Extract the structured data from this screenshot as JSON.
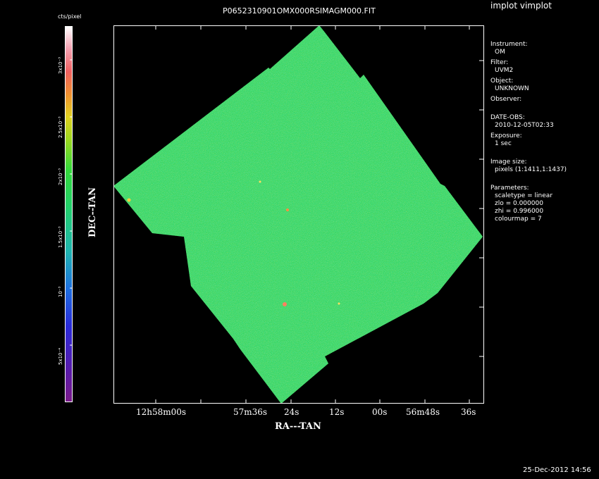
{
  "app_title": "implot vimplot",
  "file_title": "P0652310901OMX000RSIMAGM000.FIT",
  "colorbar": {
    "unit_label": "cts/pixel",
    "tick_labels": [
      "5x10⁻⁴",
      "10⁻³",
      "1.5x10⁻³",
      "2x10⁻³",
      "2.5x10⁻³",
      "3x10⁻³"
    ]
  },
  "axes": {
    "xlabel": "RA---TAN",
    "ylabel": "DEC--TAN",
    "x_ticks": [
      "12h58m00s",
      "57m36s",
      "24s",
      "12s",
      "00s",
      "56m48s",
      "36s"
    ]
  },
  "info": {
    "instrument_label": "Instrument:",
    "instrument_value": "OM",
    "filter_label": "Filter:",
    "filter_value": "UVM2",
    "object_label": "Object:",
    "object_value": "UNKNOWN",
    "observer_label": "Observer:",
    "date_label": "DATE-OBS:",
    "date_value": "2010-12-05T02:33",
    "exposure_label": "Exposure:",
    "exposure_value": "1 sec",
    "image_size_label": "Image size:",
    "image_size_value": "pixels (1:1411,1:1437)",
    "parameters_label": "Parameters:",
    "scaletype": "scaletype = linear",
    "zlo": "zlo = 0.000000",
    "zhi": "zhi = 0.996000",
    "colourmap": "colourmap =   7"
  },
  "footer_timestamp": "25-Dec-2012 14:56",
  "colors": {
    "image_green": "#2fd24a",
    "frame": "#ffffff",
    "background": "#000000"
  }
}
